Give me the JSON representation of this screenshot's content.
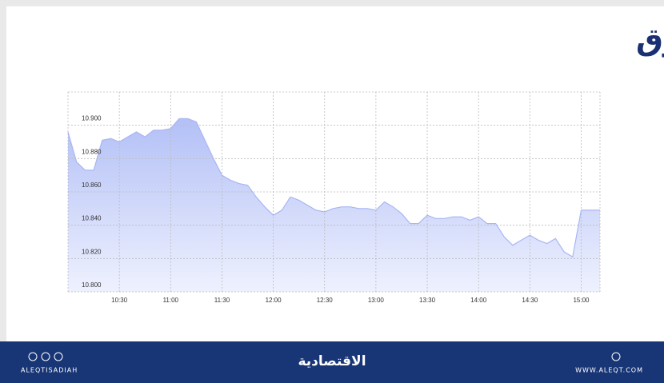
{
  "chart_data": {
    "type": "area",
    "title": "مؤشر السوق",
    "x": [
      "10:00",
      "10:05",
      "10:10",
      "10:15",
      "10:20",
      "10:25",
      "10:30",
      "10:35",
      "10:40",
      "10:45",
      "10:50",
      "10:55",
      "11:00",
      "11:05",
      "11:10",
      "11:15",
      "11:20",
      "11:25",
      "11:30",
      "11:35",
      "11:40",
      "11:45",
      "11:50",
      "11:55",
      "12:00",
      "12:05",
      "12:10",
      "12:15",
      "12:20",
      "12:25",
      "12:30",
      "12:35",
      "12:40",
      "12:45",
      "12:50",
      "12:55",
      "13:00",
      "13:05",
      "13:10",
      "13:15",
      "13:20",
      "13:25",
      "13:30",
      "13:35",
      "13:40",
      "13:45",
      "13:50",
      "13:55",
      "14:00",
      "14:05",
      "14:10",
      "14:15",
      "14:20",
      "14:25",
      "14:30",
      "14:35",
      "14:40",
      "14:45",
      "14:50",
      "14:55",
      "15:00",
      "15:11"
    ],
    "values": [
      10.896,
      10.878,
      10.873,
      10.873,
      10.891,
      10.892,
      10.89,
      10.893,
      10.896,
      10.893,
      10.897,
      10.897,
      10.898,
      10.904,
      10.904,
      10.902,
      10.891,
      10.88,
      10.87,
      10.867,
      10.865,
      10.864,
      10.857,
      10.851,
      10.846,
      10.849,
      10.857,
      10.855,
      10.852,
      10.849,
      10.848,
      10.85,
      10.851,
      10.851,
      10.85,
      10.85,
      10.849,
      10.854,
      10.851,
      10.847,
      10.841,
      10.841,
      10.846,
      10.844,
      10.844,
      10.845,
      10.845,
      10.843,
      10.845,
      10.841,
      10.841,
      10.833,
      10.828,
      10.831,
      10.834,
      10.831,
      10.829,
      10.832,
      10.824,
      10.821,
      10.849,
      10.849
    ],
    "color": "#a9b6f3",
    "xlim": [
      "10:00",
      "15:11"
    ],
    "xticks": [
      "10:30",
      "11:00",
      "11:30",
      "12:00",
      "12:30",
      "13:00",
      "13:30",
      "14:00",
      "14:30",
      "15:00"
    ],
    "ylim": [
      10.8,
      10.92
    ],
    "yticks": [
      {
        "value": 10.8,
        "label": "10.800"
      },
      {
        "value": 10.82,
        "label": "10.820"
      },
      {
        "value": 10.84,
        "label": "10.840"
      },
      {
        "value": 10.86,
        "label": "10.860"
      },
      {
        "value": 10.88,
        "label": "10.880"
      },
      {
        "value": 10.9,
        "label": "10.900"
      }
    ],
    "grid": true
  },
  "footer": {
    "left": "ALEQTISADIAH",
    "center": "الاقتصادية",
    "right": "WWW.ALEQT.COM"
  }
}
